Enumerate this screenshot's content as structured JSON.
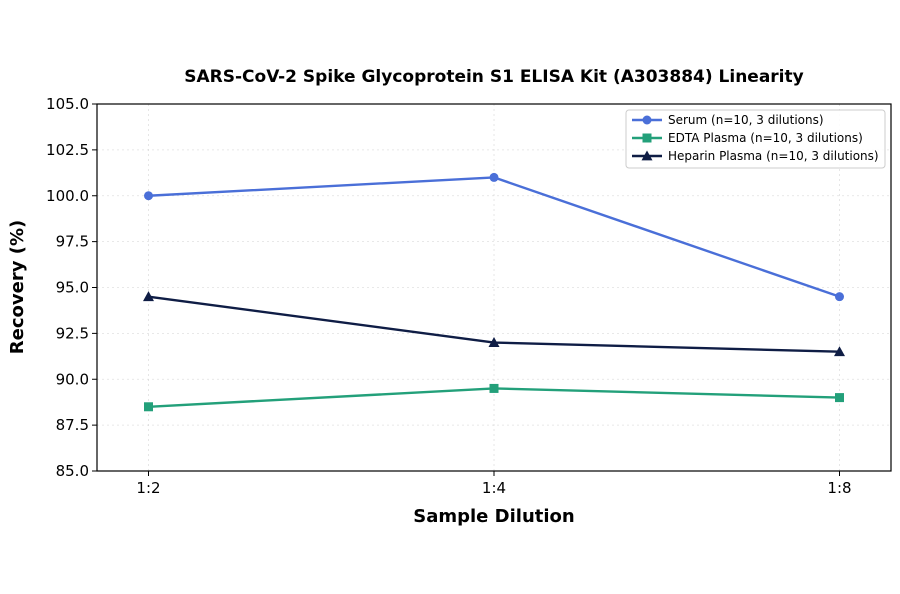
{
  "chart_data": {
    "type": "line",
    "title": "SARS-CoV-2 Spike Glycoprotein S1 ELISA Kit (A303884) Linearity",
    "xlabel": "Sample Dilution",
    "ylabel": "Recovery (%)",
    "categories": [
      "1:2",
      "1:4",
      "1:8"
    ],
    "ylim": [
      85.0,
      105.0
    ],
    "yticks": [
      "85.0",
      "87.5",
      "90.0",
      "92.5",
      "95.0",
      "97.5",
      "100.0",
      "102.5",
      "105.0"
    ],
    "grid": true,
    "legend_position": "top-right",
    "series": [
      {
        "name": "Serum (n=10, 3 dilutions)",
        "values": [
          100.0,
          101.0,
          94.5
        ],
        "color": "#4a6fd8",
        "marker": "circle"
      },
      {
        "name": "EDTA Plasma (n=10, 3 dilutions)",
        "values": [
          88.5,
          89.5,
          89.0
        ],
        "color": "#23a07a",
        "marker": "square"
      },
      {
        "name": "Heparin Plasma (n=10, 3 dilutions)",
        "values": [
          94.5,
          92.0,
          91.5
        ],
        "color": "#0f1d45",
        "marker": "triangle"
      }
    ]
  }
}
